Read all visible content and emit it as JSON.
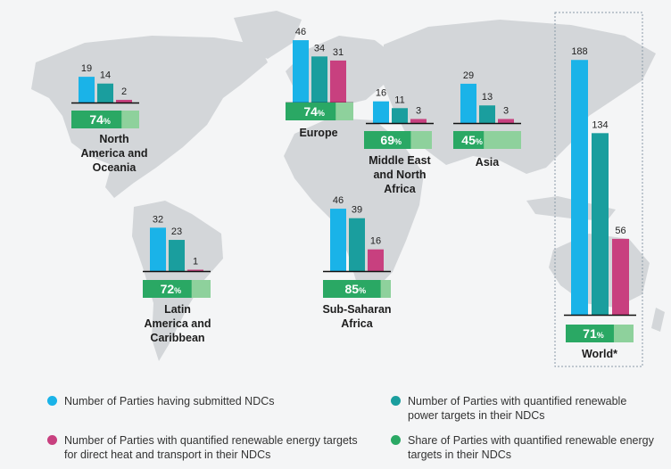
{
  "colors": {
    "submitted": "#1ab3e8",
    "power": "#1a9e9e",
    "heat": "#c8407f",
    "share_dark": "#2aa864",
    "share_light": "#8ed19c",
    "map": "#d3d6d9"
  },
  "chart_data": {
    "type": "bar",
    "series": [
      {
        "key": "submitted",
        "name": "Number of Parties having submitted NDCs"
      },
      {
        "key": "power",
        "name": "Number of Parties with quantified renewable power targets in their NDCs"
      },
      {
        "key": "heat",
        "name": "Number of Parties with quantified renewable energy targets for direct heat and transport in their NDCs"
      },
      {
        "key": "share",
        "name": "Share of Parties with quantified renewable energy targets in their NDCs"
      }
    ],
    "regions": [
      {
        "name": "North America and Oceania",
        "values": [
          19,
          14,
          2
        ],
        "share": 74,
        "share_label": "74"
      },
      {
        "name": "Europe",
        "values": [
          46,
          34,
          31
        ],
        "share": 74,
        "share_label": "74"
      },
      {
        "name": "Middle East and North Africa",
        "values": [
          16,
          11,
          3
        ],
        "share": 69,
        "share_label": "69"
      },
      {
        "name": "Asia",
        "values": [
          29,
          13,
          3
        ],
        "share": 45,
        "share_label": "45"
      },
      {
        "name": "Latin America and Caribbean",
        "values": [
          32,
          23,
          1
        ],
        "share": 72,
        "share_label": "72"
      },
      {
        "name": "Sub-Saharan Africa",
        "values": [
          46,
          39,
          16
        ],
        "share": 85,
        "share_label": "85"
      },
      {
        "name": "World*",
        "values": [
          188,
          134,
          56
        ],
        "share": 71,
        "share_label": "71"
      }
    ],
    "percent_sign": "%"
  },
  "legend": [
    {
      "color_key": "submitted",
      "text": "Number of Parties having submitted NDCs"
    },
    {
      "color_key": "power",
      "text": "Number of Parties with quantified renewable power targets in their NDCs"
    },
    {
      "color_key": "heat",
      "text": "Number of Parties with quantified renewable energy targets for direct heat and transport in their NDCs"
    },
    {
      "color_key": "share_dark",
      "text": "Share of Parties with quantified renewable energy targets in their NDCs"
    }
  ]
}
